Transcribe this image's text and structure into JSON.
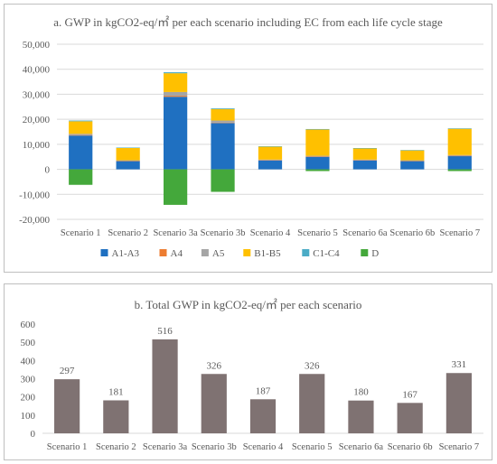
{
  "chart_data": [
    {
      "type": "bar",
      "stacked": true,
      "title": "a. GWP in kgCO2-eq/㎡ per each scenario including EC from each life cycle stage",
      "xlabel": "",
      "ylabel": "",
      "ylim": [
        -20000,
        50000
      ],
      "yticks": [
        "50,000",
        "40,000",
        "30,000",
        "20,000",
        "10,000",
        "0",
        "-10,000",
        "-20,000"
      ],
      "ytick_values": [
        50000,
        40000,
        30000,
        20000,
        10000,
        0,
        -10000,
        -20000
      ],
      "grid": true,
      "legend_position": "bottom",
      "categories": [
        "Scenario 1",
        "Scenario 2",
        "Scenario 3a",
        "Scenario 3b",
        "Scenario 4",
        "Scenario 5",
        "Scenario 6a",
        "Scenario 6b",
        "Scenario 7"
      ],
      "series": [
        {
          "name": "A1-A3",
          "color": "#1f70c1",
          "values": [
            13500,
            3300,
            29000,
            18500,
            3600,
            5000,
            3600,
            3300,
            5300
          ]
        },
        {
          "name": "A4",
          "color": "#ed7d31",
          "values": [
            200,
            100,
            400,
            200,
            100,
            100,
            100,
            100,
            100
          ]
        },
        {
          "name": "A5",
          "color": "#a5a5a5",
          "values": [
            500,
            200,
            1500,
            800,
            200,
            300,
            200,
            200,
            300
          ]
        },
        {
          "name": "B1-B5",
          "color": "#ffc000",
          "values": [
            5000,
            5000,
            7500,
            4600,
            5200,
            10500,
            4500,
            4000,
            10500
          ]
        },
        {
          "name": "C1-C4",
          "color": "#4bacc6",
          "values": [
            300,
            100,
            400,
            300,
            100,
            200,
            100,
            100,
            200
          ]
        },
        {
          "name": "D",
          "color": "#44a83b",
          "values": [
            -6200,
            0,
            -14200,
            -9000,
            0,
            -700,
            0,
            0,
            -700
          ]
        }
      ]
    },
    {
      "type": "bar",
      "title": "b. Total GWP in kgCO2-eq/㎡ per each scenario",
      "xlabel": "",
      "ylabel": "",
      "ylim": [
        0,
        600
      ],
      "yticks": [
        "600",
        "500",
        "400",
        "300",
        "200",
        "100",
        "0"
      ],
      "ytick_values": [
        600,
        500,
        400,
        300,
        200,
        100,
        0
      ],
      "grid": false,
      "color": "#7f7272",
      "categories": [
        "Scenario 1",
        "Scenario 2",
        "Scenario 3a",
        "Scenario 3b",
        "Scenario 4",
        "Scenario 5",
        "Scenario 6a",
        "Scenario 6b",
        "Scenario 7"
      ],
      "values": [
        297,
        181,
        516,
        326,
        187,
        326,
        180,
        167,
        331
      ],
      "data_labels": [
        "297",
        "181",
        "516",
        "326",
        "187",
        "326",
        "180",
        "167",
        "331"
      ]
    }
  ]
}
